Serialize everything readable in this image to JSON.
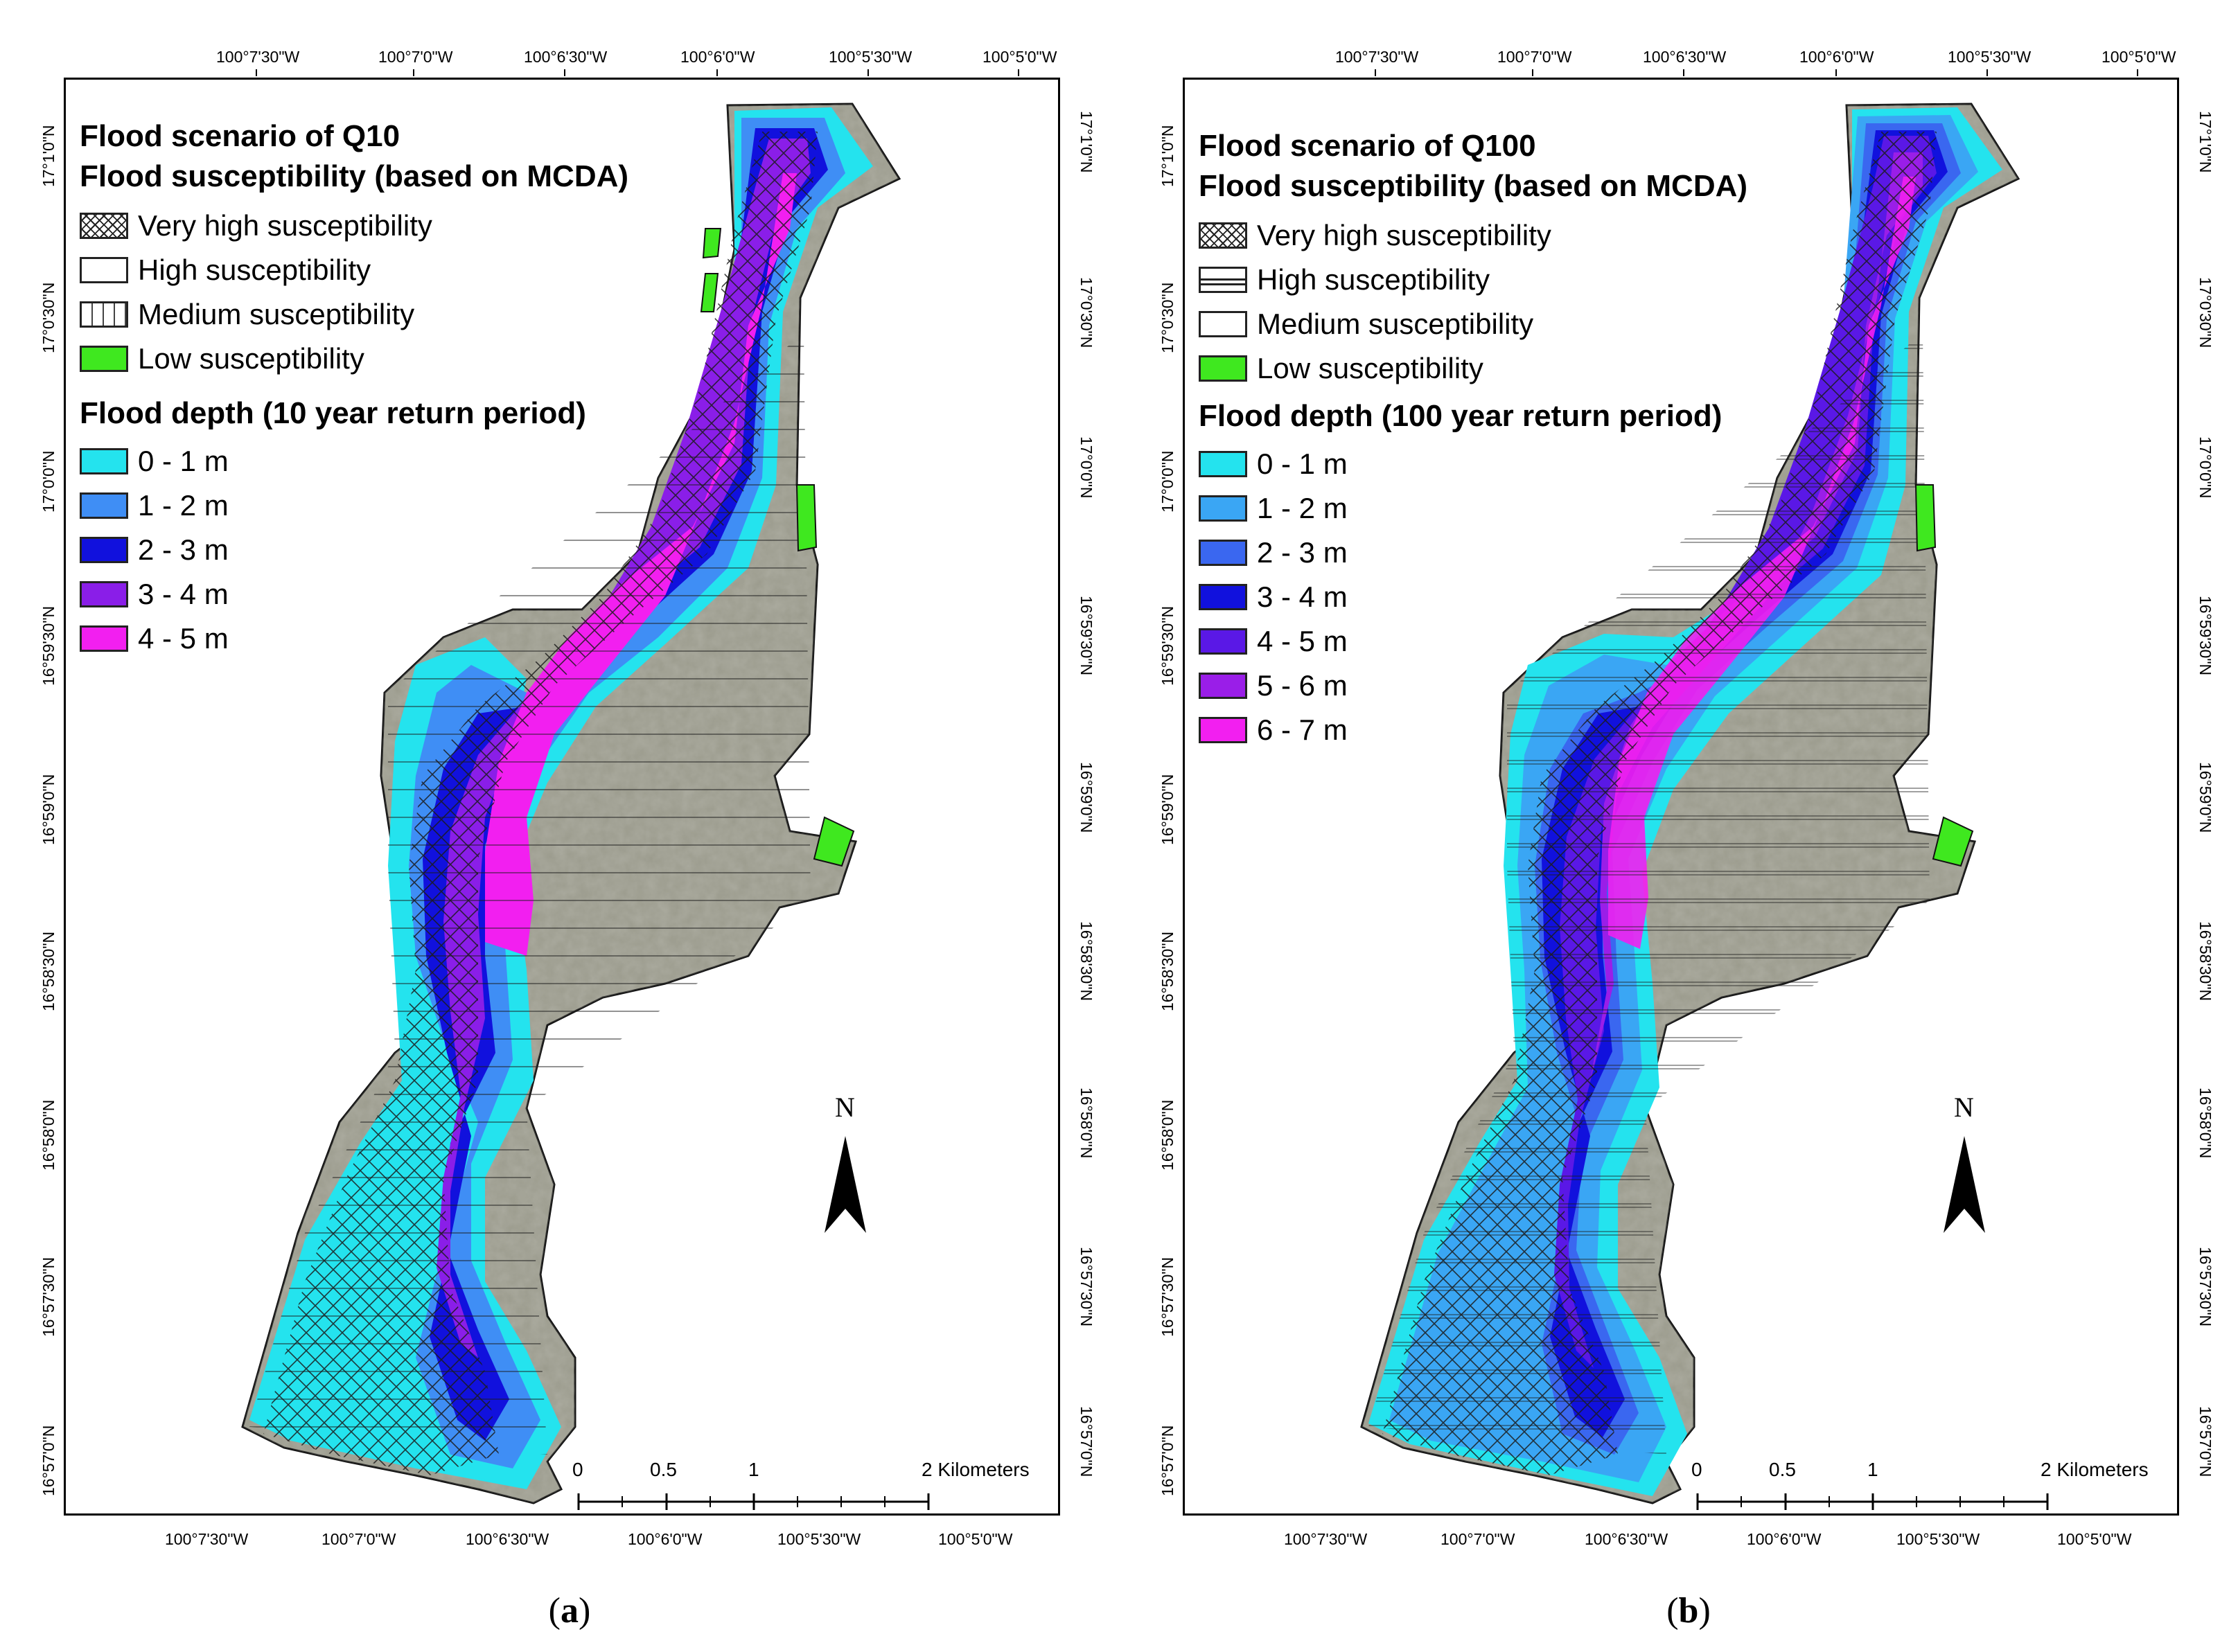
{
  "figure_type": "flood susceptibility map",
  "colors": {
    "aerial": "#9a9a8c",
    "depth_1": "#24e3ee",
    "depth_2": "#3f8ef5",
    "depth_3": "#1111dd",
    "depth_4": "#8a1ee8",
    "depth_5": "#f21ff0",
    "low_susceptibility": "#3fe81f"
  },
  "panels": [
    {
      "caption_letter": "a",
      "caption_open": "(",
      "caption_close": ")",
      "title_1": "Flood scenario of Q10",
      "title_2": "Flood susceptibility (based on MCDA)",
      "susceptibility_legend": [
        {
          "label": "Very high susceptibility",
          "pattern": "crosshatch"
        },
        {
          "label": "High susceptibility",
          "pattern": "empty"
        },
        {
          "label": "Medium susceptibility",
          "pattern": "dashed-vertical"
        },
        {
          "label": "Low susceptibility",
          "pattern": "green"
        }
      ],
      "depth_title": "Flood depth (10 year return period)",
      "depth_legend": [
        {
          "label": "0 - 1 m",
          "color": "#24e3ee"
        },
        {
          "label": "1 - 2 m",
          "color": "#3f8ef5"
        },
        {
          "label": "2 - 3 m",
          "color": "#1111dd"
        },
        {
          "label": "3 - 4 m",
          "color": "#8a1ee8"
        },
        {
          "label": "4 - 5 m",
          "color": "#f21ff0"
        }
      ],
      "x_ticks_top": [
        "100°7'30\"W",
        "100°7'0\"W",
        "100°6'30\"W",
        "100°6'0\"W",
        "100°5'30\"W",
        "100°5'0\"W"
      ],
      "x_ticks_bottom": [
        "100°7'30\"W",
        "100°7'0\"W",
        "100°6'30\"W",
        "100°6'0\"W",
        "100°5'30\"W",
        "100°5'0\"W"
      ],
      "y_ticks": [
        "17°1'0\"N",
        "17°0'30\"N",
        "17°0'0\"N",
        "16°59'30\"N",
        "16°59'0\"N",
        "16°58'30\"N",
        "16°58'0\"N",
        "16°57'30\"N",
        "16°57'0\"N"
      ],
      "north_label": "N",
      "scale_labels": [
        "0",
        "0.5",
        "1",
        "2 Kilometers"
      ]
    },
    {
      "caption_letter": "b",
      "caption_open": "(",
      "caption_close": ")",
      "title_1": "Flood scenario of Q100",
      "title_2": "Flood susceptibility (based on MCDA)",
      "susceptibility_legend": [
        {
          "label": "Very high susceptibility",
          "pattern": "crosshatch"
        },
        {
          "label": "High susceptibility",
          "pattern": "double-line"
        },
        {
          "label": "Medium susceptibility",
          "pattern": "empty"
        },
        {
          "label": "Low susceptibility",
          "pattern": "green"
        }
      ],
      "depth_title": "Flood depth (100 year return period)",
      "depth_legend": [
        {
          "label": "0 - 1 m",
          "color": "#24e3ee"
        },
        {
          "label": "1 - 2 m",
          "color": "#3aa6f4"
        },
        {
          "label": "2 - 3 m",
          "color": "#3a67f0"
        },
        {
          "label": "3 - 4 m",
          "color": "#1111dd"
        },
        {
          "label": "4 - 5 m",
          "color": "#5a18e6"
        },
        {
          "label": "5 - 6 m",
          "color": "#9a1ee8"
        },
        {
          "label": "6 - 7 m",
          "color": "#f21ff0"
        }
      ],
      "x_ticks_top": [
        "100°7'30\"W",
        "100°7'0\"W",
        "100°6'30\"W",
        "100°6'0\"W",
        "100°5'30\"W",
        "100°5'0\"W"
      ],
      "x_ticks_bottom": [
        "100°7'30\"W",
        "100°7'0\"W",
        "100°6'30\"W",
        "100°6'0\"W",
        "100°5'30\"W",
        "100°5'0\"W"
      ],
      "y_ticks": [
        "17°1'0\"N",
        "17°0'30\"N",
        "17°0'0\"N",
        "16°59'30\"N",
        "16°59'0\"N",
        "16°58'30\"N",
        "16°58'0\"N",
        "16°57'30\"N",
        "16°57'0\"N"
      ],
      "north_label": "N",
      "scale_labels": [
        "0",
        "0.5",
        "1",
        "2 Kilometers"
      ]
    }
  ]
}
